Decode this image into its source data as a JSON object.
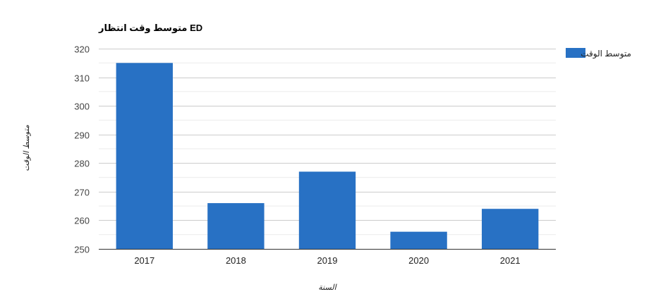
{
  "chart_data": {
    "type": "bar",
    "title": "متوسط وقت انتظار ED",
    "xlabel": "السنة",
    "ylabel": "متوسط الوقت",
    "categories": [
      "2017",
      "2018",
      "2019",
      "2020",
      "2021"
    ],
    "series": [
      {
        "name": "متوسط الوقت",
        "values": [
          315,
          266,
          277,
          256,
          264
        ],
        "color": "#2871c4"
      }
    ],
    "ylim": [
      250,
      320
    ],
    "yticks": [
      250,
      260,
      270,
      280,
      290,
      300,
      310,
      320
    ],
    "grid": true,
    "legend_position": "right"
  }
}
